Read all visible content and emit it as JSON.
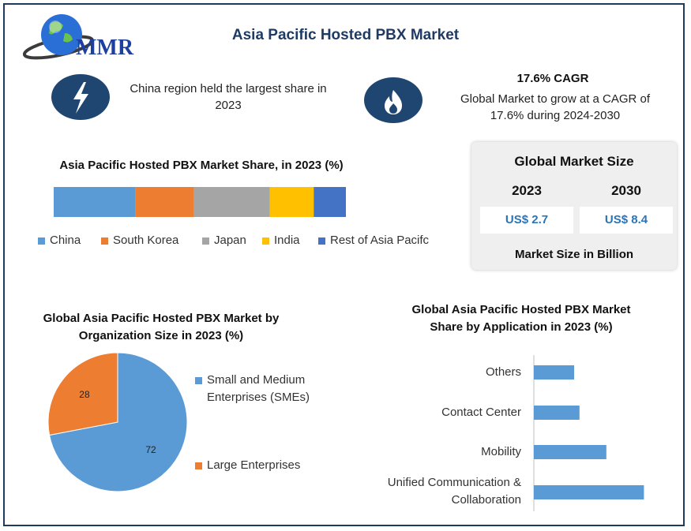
{
  "header": {
    "logo_text": "MMR",
    "title": "Asia Pacific Hosted PBX Market"
  },
  "info": {
    "left_text": "China region held the largest share in 2023",
    "left_icon": "lightning-bolt-icon",
    "right_icon": "flame-icon",
    "cagr_title": "17.6% CAGR",
    "cagr_text": "Global Market to grow at a CAGR of 17.6% during 2024-2030"
  },
  "market_size": {
    "title": "Global Market Size",
    "year1": "2023",
    "year2": "2030",
    "value1": "US$ 2.7",
    "value2": "US$ 8.4",
    "footer": "Market Size in Billion"
  },
  "colors": {
    "blue": "#5b9bd5",
    "orange": "#ed7d31",
    "gray": "#a5a5a5",
    "yellow": "#ffc000",
    "darkblue": "#4472c4",
    "navy": "#1f4670"
  },
  "chart_data": [
    {
      "type": "bar",
      "orientation": "horizontal-stacked",
      "title": "Asia Pacific Hosted PBX Market Share, in 2023 (%)",
      "series": [
        {
          "name": "China",
          "value": 28
        },
        {
          "name": "South Korea",
          "value": 20
        },
        {
          "name": "Japan",
          "value": 26
        },
        {
          "name": "India",
          "value": 15
        },
        {
          "name": "Rest of Asia Pacifc",
          "value": 11
        }
      ],
      "legend_position": "bottom"
    },
    {
      "type": "pie",
      "title": "Global Asia Pacific Hosted PBX Market by Organization Size in 2023 (%)",
      "slices": [
        {
          "name": "Small and Medium Enterprises (SMEs)",
          "value": 72,
          "label": "72"
        },
        {
          "name": "Large Enterprises",
          "value": 28,
          "label": "28"
        }
      ],
      "legend_position": "right"
    },
    {
      "type": "bar",
      "orientation": "horizontal",
      "title": "Global Asia Pacific Hosted PBX Market Share by Application in 2023 (%)",
      "categories": [
        "Others",
        "Contact Center",
        "Mobility",
        "Unified Communication & Collaboration"
      ],
      "values": [
        15,
        17,
        27,
        41
      ],
      "xlim": [
        0,
        50
      ],
      "grid": false
    }
  ]
}
